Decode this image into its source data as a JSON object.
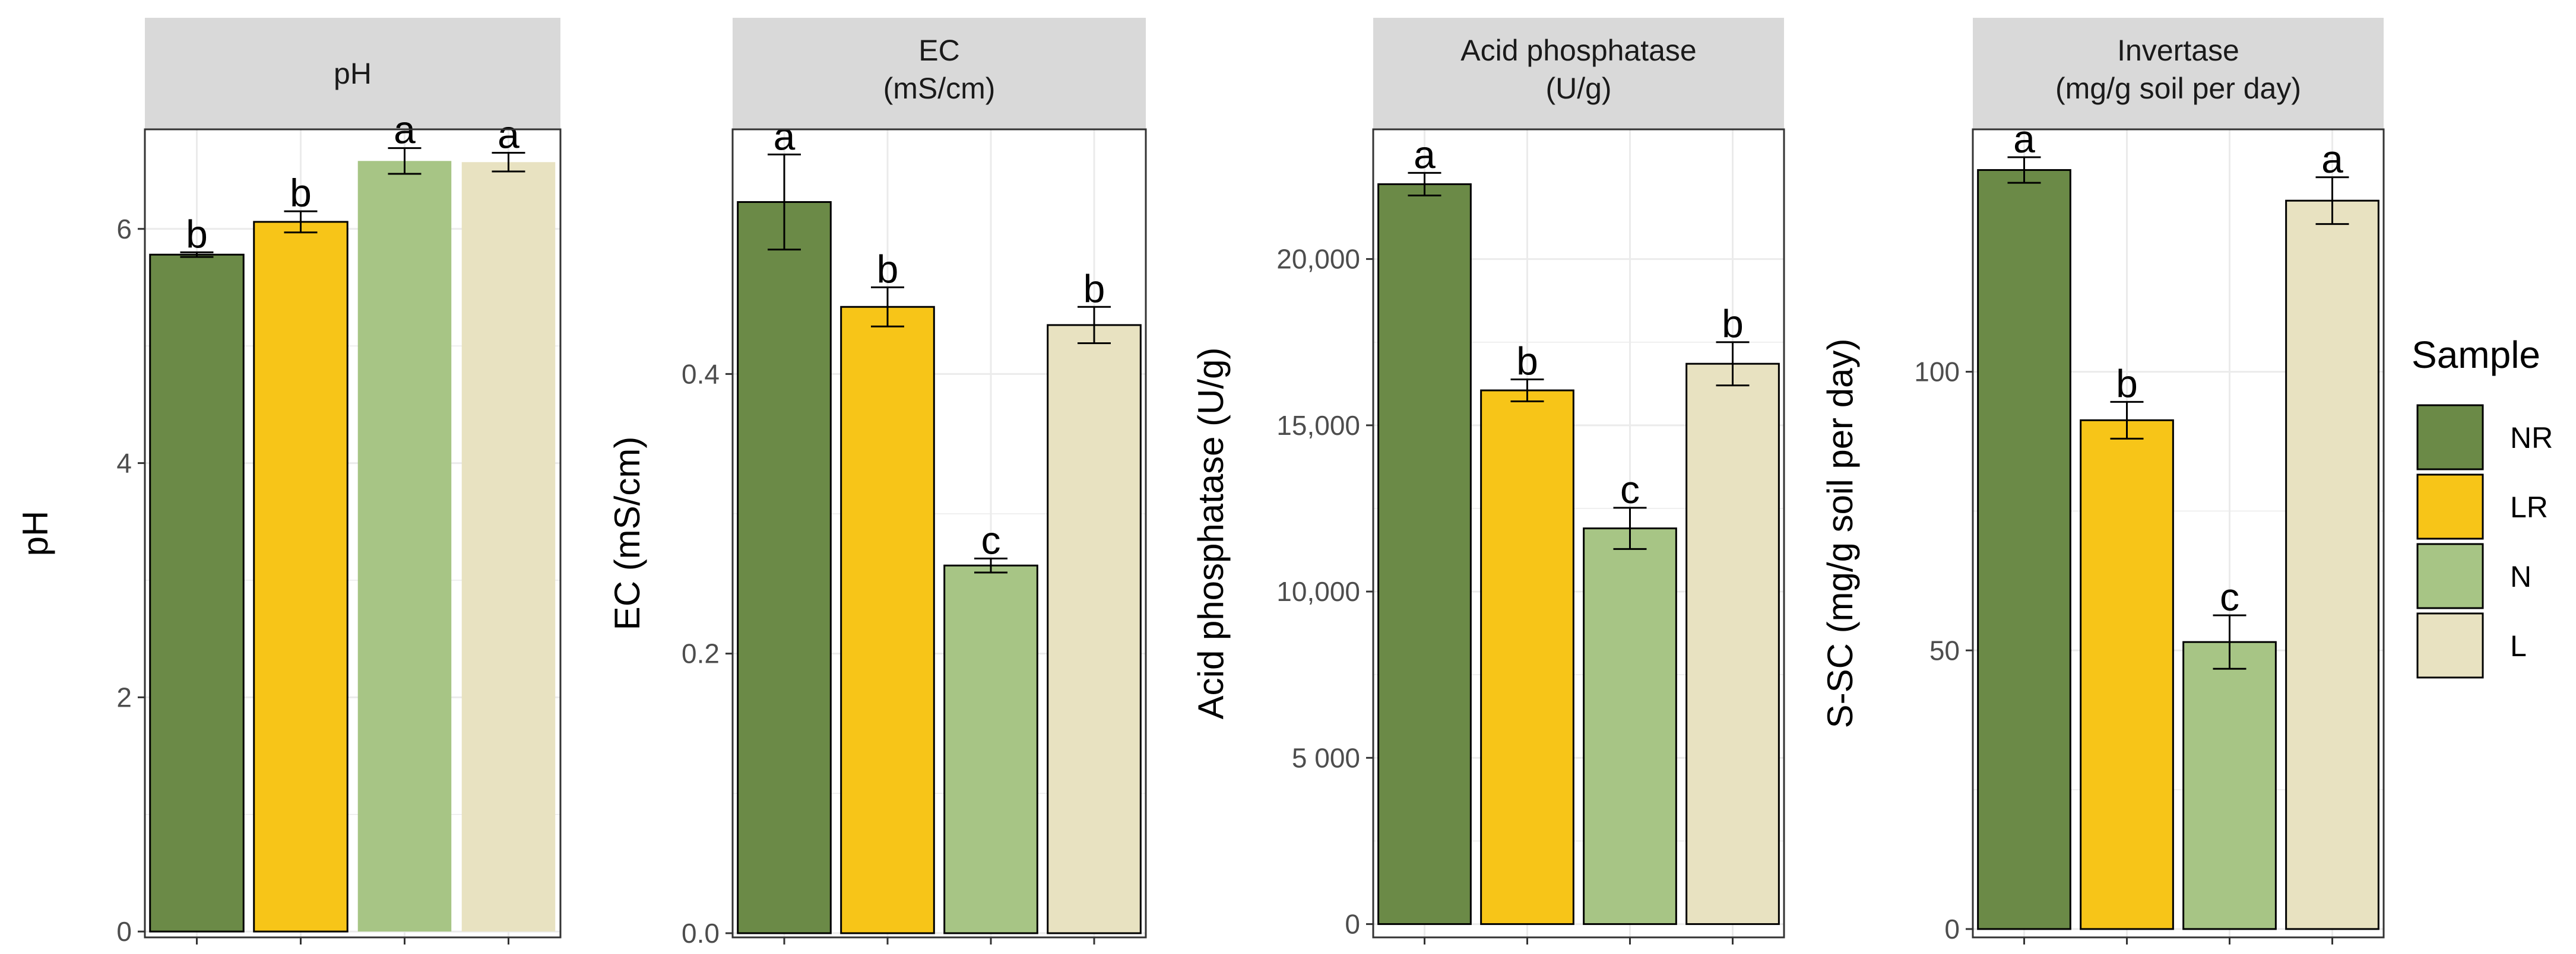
{
  "chart_data": [
    {
      "type": "bar",
      "strip": [
        "pH"
      ],
      "ylabel": "pH",
      "ylim": [
        -0.05,
        6.85
      ],
      "ticks": [
        0,
        2,
        4,
        6
      ],
      "tick_labels": [
        "0",
        "2",
        "4",
        "6"
      ],
      "categories": [
        "NR",
        "LR",
        "N",
        "L"
      ],
      "values": [
        5.78,
        6.06,
        6.58,
        6.57
      ],
      "errors": [
        0.02,
        0.09,
        0.11,
        0.08
      ],
      "letters": [
        "b",
        "b",
        "a",
        "a"
      ]
    },
    {
      "type": "bar",
      "strip": [
        "EC",
        "(mS/cm)"
      ],
      "ylabel": "EC (mS/cm)",
      "ylim": [
        -0.003,
        0.575
      ],
      "ticks": [
        0,
        0.2,
        0.4
      ],
      "tick_labels": [
        "0.0",
        "0.2",
        "0.4"
      ],
      "categories": [
        "NR",
        "LR",
        "N",
        "L"
      ],
      "values": [
        0.523,
        0.448,
        0.263,
        0.435
      ],
      "errors": [
        0.034,
        0.014,
        0.005,
        0.013
      ],
      "letters": [
        "a",
        "b",
        "c",
        "b"
      ]
    },
    {
      "type": "bar",
      "strip": [
        "Acid phosphatase",
        "(U/g)"
      ],
      "ylabel": "Acid phosphatase (U/g)",
      "ylim": [
        -400,
        23900
      ],
      "ticks": [
        0,
        5000,
        10000,
        15000,
        20000
      ],
      "tick_labels": [
        "0",
        "5 000",
        "10,000",
        "15,000",
        "20,000"
      ],
      "categories": [
        "NR",
        "LR",
        "N",
        "L"
      ],
      "values": [
        22250,
        16050,
        11900,
        16850
      ],
      "errors": [
        340,
        330,
        620,
        650
      ],
      "letters": [
        "a",
        "b",
        "c",
        "b"
      ]
    },
    {
      "type": "bar",
      "strip": [
        "Invertase",
        "(mg/g soil per day)"
      ],
      "ylabel": "S-SC (mg/g soil per day)",
      "ylim": [
        -1.5,
        143.5
      ],
      "ticks": [
        0,
        50,
        100
      ],
      "tick_labels": [
        "0",
        "50",
        "100"
      ],
      "categories": [
        "NR",
        "LR",
        "N",
        "L"
      ],
      "values": [
        136.2,
        91.3,
        51.5,
        130.7
      ],
      "errors": [
        2.3,
        3.3,
        4.8,
        4.2
      ],
      "letters": [
        "a",
        "b",
        "c",
        "a"
      ]
    }
  ],
  "legend": {
    "title": "Sample",
    "items": [
      {
        "label": "NR",
        "color": "#6b8a47"
      },
      {
        "label": "LR",
        "color": "#f7c518"
      },
      {
        "label": "N",
        "color": "#a7c585"
      },
      {
        "label": "L",
        "color": "#e8e2c1"
      }
    ]
  },
  "colors": {
    "panel_border": "#333333",
    "grid": "#ebebeb",
    "strip_fill": "#d9d9d9",
    "bar_outline": "#000000"
  }
}
